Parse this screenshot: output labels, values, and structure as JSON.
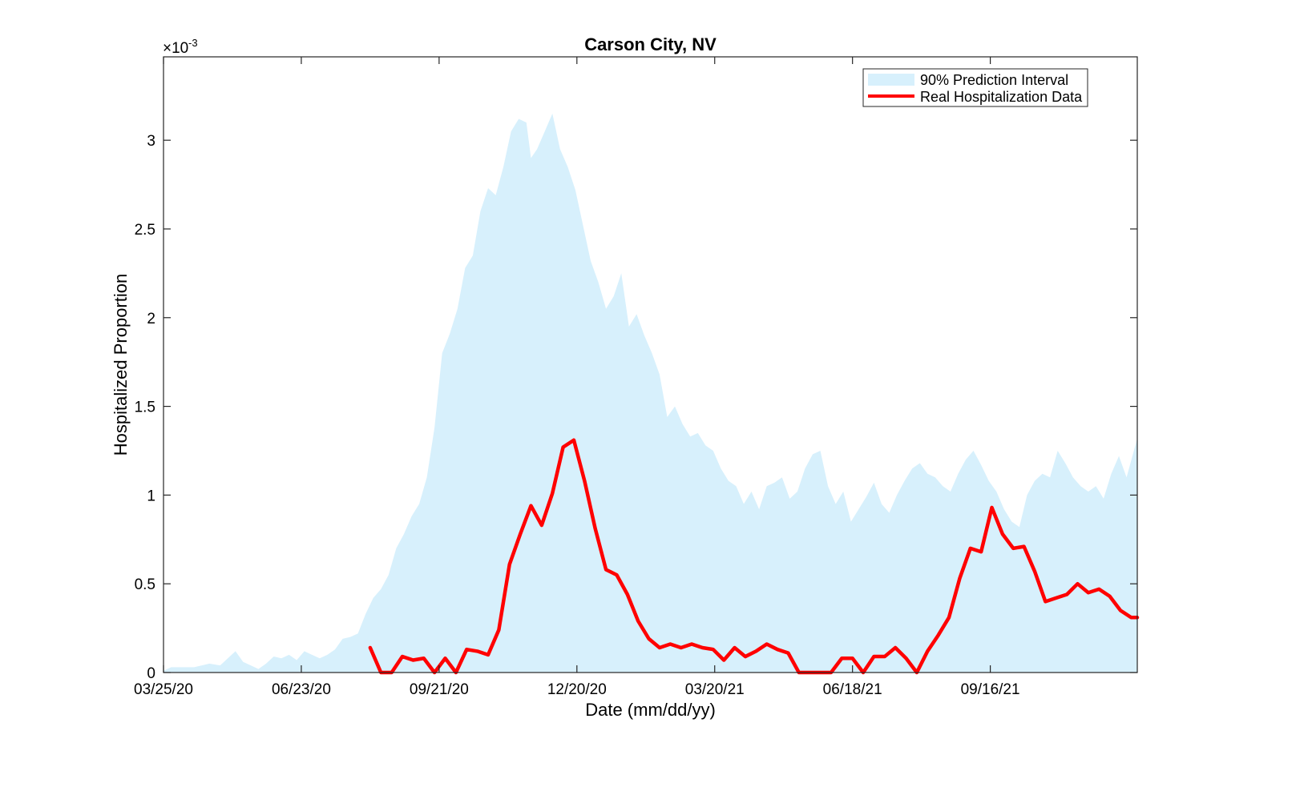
{
  "chart_data": {
    "type": "area",
    "title": "Carson City, NV",
    "xlabel": "Date (mm/dd/yy)",
    "ylabel": "Hospitalized Proportion",
    "y_exponent_base": "×10",
    "y_exponent_power": "-3",
    "xlim": [
      "03/25/20",
      "12/21/21"
    ],
    "ylim": [
      0,
      3.47
    ],
    "x_ticks": [
      "03/25/20",
      "06/23/20",
      "09/21/20",
      "12/20/20",
      "03/20/21",
      "06/18/21",
      "09/16/21"
    ],
    "y_ticks": [
      0,
      0.5,
      1,
      1.5,
      2,
      2.5,
      3
    ],
    "y_tick_labels": [
      "0",
      "0.5",
      "1",
      "1.5",
      "2",
      "2.5",
      "3"
    ],
    "grid": false,
    "legend_position": "top-right",
    "colors": {
      "interval": "#d7f0fc",
      "real": "#ff0000"
    },
    "series": [
      {
        "name": "90% Prediction Interval",
        "kind": "band",
        "x": [
          "03/25/20",
          "03/30/20",
          "04/04/20",
          "04/14/20",
          "04/24/20",
          "05/01/20",
          "05/06/20",
          "05/11/20",
          "05/16/20",
          "05/21/20",
          "05/26/20",
          "05/31/20",
          "06/05/20",
          "06/10/20",
          "06/15/20",
          "06/20/20",
          "06/25/20",
          "06/30/20",
          "07/05/20",
          "07/10/20",
          "07/15/20",
          "07/20/20",
          "07/25/20",
          "07/30/20",
          "08/04/20",
          "08/09/20",
          "08/14/20",
          "08/19/20",
          "08/24/20",
          "08/29/20",
          "09/03/20",
          "09/08/20",
          "09/13/20",
          "09/18/20",
          "09/23/20",
          "09/28/20",
          "10/03/20",
          "10/08/20",
          "10/13/20",
          "10/18/20",
          "10/23/20",
          "10/28/20",
          "11/02/20",
          "11/07/20",
          "11/12/20",
          "11/17/20",
          "11/20/20",
          "11/24/20",
          "11/29/20",
          "12/04/20",
          "12/09/20",
          "12/14/20",
          "12/19/20",
          "12/24/20",
          "12/29/20",
          "01/03/21",
          "01/08/21",
          "01/13/21",
          "01/18/21",
          "01/23/21",
          "01/28/21",
          "02/02/21",
          "02/07/21",
          "02/12/21",
          "02/17/21",
          "02/22/21",
          "02/27/21",
          "03/04/21",
          "03/09/21",
          "03/14/21",
          "03/19/21",
          "03/24/21",
          "03/29/21",
          "04/03/21",
          "04/08/21",
          "04/13/21",
          "04/18/21",
          "04/23/21",
          "04/28/21",
          "05/03/21",
          "05/08/21",
          "05/13/21",
          "05/18/21",
          "05/23/21",
          "05/28/21",
          "06/02/21",
          "06/07/21",
          "06/12/21",
          "06/17/21",
          "06/22/21",
          "06/27/21",
          "07/02/21",
          "07/07/21",
          "07/12/21",
          "07/17/21",
          "07/22/21",
          "07/27/21",
          "08/01/21",
          "08/06/21",
          "08/11/21",
          "08/16/21",
          "08/21/21",
          "08/26/21",
          "08/31/21",
          "09/05/21",
          "09/10/21",
          "09/15/21",
          "09/20/21",
          "09/25/21",
          "09/30/21",
          "10/05/21",
          "10/10/21",
          "10/15/21",
          "10/20/21",
          "10/25/21",
          "10/30/21",
          "11/04/21",
          "11/09/21",
          "11/14/21",
          "11/19/21",
          "11/24/21",
          "11/29/21",
          "12/04/21",
          "12/09/21",
          "12/14/21",
          "12/21/21"
        ],
        "lower": [
          0,
          0,
          0,
          0,
          0,
          0,
          0,
          0,
          0,
          0,
          0,
          0,
          0,
          0,
          0,
          0,
          0,
          0,
          0,
          0,
          0,
          0,
          0,
          0,
          0,
          0,
          0,
          0,
          0,
          0,
          0,
          0,
          0,
          0,
          0,
          0,
          0,
          0,
          0,
          0,
          0,
          0,
          0,
          0,
          0,
          0,
          0,
          0,
          0,
          0,
          0,
          0,
          0,
          0,
          0,
          0,
          0,
          0,
          0,
          0,
          0,
          0,
          0,
          0,
          0,
          0,
          0,
          0,
          0,
          0,
          0,
          0,
          0,
          0,
          0,
          0,
          0,
          0,
          0,
          0,
          0,
          0,
          0,
          0,
          0,
          0,
          0,
          0,
          0,
          0,
          0,
          0,
          0,
          0,
          0,
          0,
          0,
          0,
          0,
          0,
          0,
          0,
          0,
          0,
          0,
          0,
          0,
          0,
          0,
          0,
          0,
          0,
          0,
          0,
          0,
          0,
          0,
          0,
          0,
          0,
          0,
          0,
          0,
          0,
          0,
          0
        ],
        "upper": [
          0.01,
          0.03,
          0.03,
          0.03,
          0.05,
          0.04,
          0.08,
          0.12,
          0.06,
          0.04,
          0.02,
          0.05,
          0.09,
          0.08,
          0.1,
          0.07,
          0.12,
          0.1,
          0.08,
          0.1,
          0.13,
          0.19,
          0.2,
          0.22,
          0.33,
          0.42,
          0.47,
          0.55,
          0.7,
          0.78,
          0.88,
          0.95,
          1.1,
          1.38,
          1.8,
          1.91,
          2.05,
          2.28,
          2.35,
          2.6,
          2.73,
          2.69,
          2.85,
          3.05,
          3.12,
          3.1,
          2.9,
          2.95,
          3.05,
          3.15,
          2.95,
          2.85,
          2.72,
          2.52,
          2.32,
          2.2,
          2.05,
          2.12,
          2.25,
          1.95,
          2.02,
          1.9,
          1.8,
          1.68,
          1.44,
          1.5,
          1.4,
          1.33,
          1.35,
          1.28,
          1.25,
          1.15,
          1.08,
          1.05,
          0.95,
          1.02,
          0.92,
          1.05,
          1.07,
          1.1,
          0.98,
          1.02,
          1.15,
          1.23,
          1.25,
          1.05,
          0.95,
          1.02,
          0.85,
          0.92,
          0.99,
          1.07,
          0.95,
          0.9,
          1.0,
          1.08,
          1.15,
          1.18,
          1.12,
          1.1,
          1.05,
          1.02,
          1.12,
          1.2,
          1.25,
          1.17,
          1.08,
          1.02,
          0.92,
          0.85,
          0.82,
          1.0,
          1.08,
          1.12,
          1.1,
          1.25,
          1.18,
          1.1,
          1.05,
          1.02,
          1.05,
          0.98,
          1.12,
          1.22,
          1.1,
          1.32
        ]
      },
      {
        "name": "Real Hospitalization Data",
        "kind": "line",
        "x": [
          "08/07/20",
          "08/14/20",
          "08/21/20",
          "08/28/20",
          "09/04/20",
          "09/11/20",
          "09/18/20",
          "09/25/20",
          "10/02/20",
          "10/09/20",
          "10/16/20",
          "10/23/20",
          "10/30/20",
          "11/06/20",
          "11/13/20",
          "11/20/20",
          "11/27/20",
          "12/04/20",
          "12/11/20",
          "12/18/20",
          "12/25/20",
          "01/01/21",
          "01/08/21",
          "01/15/21",
          "01/22/21",
          "01/29/21",
          "02/05/21",
          "02/12/21",
          "02/19/21",
          "02/26/21",
          "03/05/21",
          "03/12/21",
          "03/19/21",
          "03/26/21",
          "04/02/21",
          "04/09/21",
          "04/16/21",
          "04/23/21",
          "04/30/21",
          "05/07/21",
          "05/14/21",
          "05/21/21",
          "05/28/21",
          "06/04/21",
          "06/11/21",
          "06/18/21",
          "06/25/21",
          "07/02/21",
          "07/09/21",
          "07/16/21",
          "07/23/21",
          "07/30/21",
          "08/06/21",
          "08/13/21",
          "08/20/21",
          "08/27/21",
          "09/03/21",
          "09/10/21",
          "09/17/21",
          "09/24/21",
          "10/01/21",
          "10/08/21",
          "10/15/21",
          "10/22/21",
          "10/29/21",
          "11/05/21",
          "11/12/21",
          "11/19/21",
          "11/26/21",
          "12/03/21",
          "12/10/21",
          "12/17/21",
          "12/21/21"
        ],
        "y": [
          0.14,
          0,
          0,
          0.09,
          0.07,
          0.08,
          0,
          0.08,
          0,
          0.13,
          0.12,
          0.1,
          0.24,
          0.61,
          0.78,
          0.94,
          0.83,
          1.01,
          1.27,
          1.31,
          1.08,
          0.81,
          0.58,
          0.55,
          0.44,
          0.29,
          0.19,
          0.14,
          0.16,
          0.14,
          0.16,
          0.14,
          0.13,
          0.07,
          0.14,
          0.09,
          0.12,
          0.16,
          0.13,
          0.11,
          0,
          0,
          0,
          0,
          0.08,
          0.08,
          0,
          0.09,
          0.09,
          0.14,
          0.08,
          0,
          0.12,
          0.21,
          0.31,
          0.53,
          0.7,
          0.68,
          0.93,
          0.78,
          0.7,
          0.71,
          0.57,
          0.4,
          0.42,
          0.44,
          0.5,
          0.45,
          0.47,
          0.43,
          0.35,
          0.31,
          0.31
        ]
      }
    ]
  }
}
